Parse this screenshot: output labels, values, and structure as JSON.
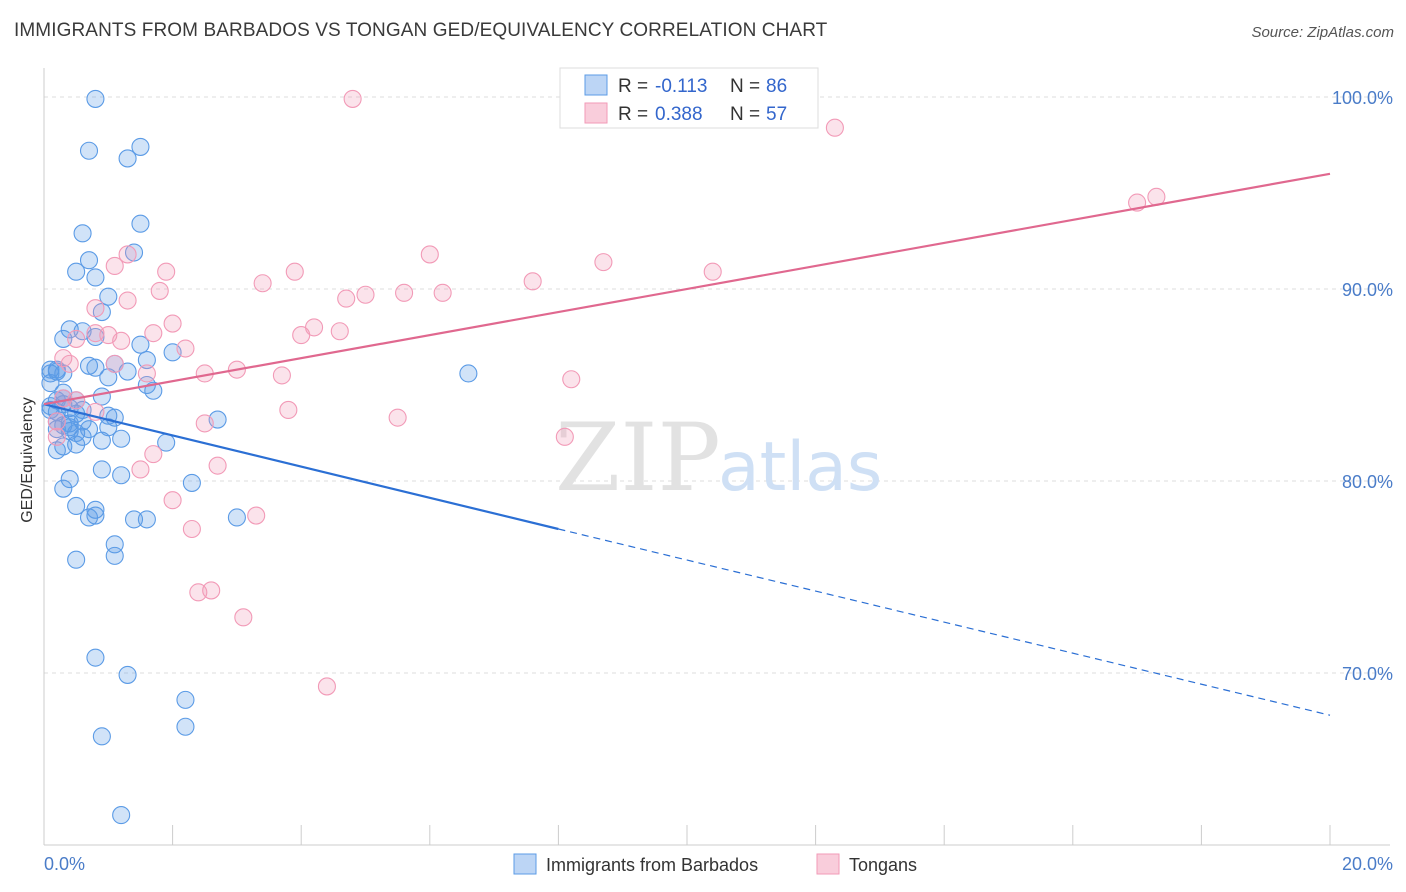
{
  "header": {
    "title": "IMMIGRANTS FROM BARBADOS VS TONGAN GED/EQUIVALENCY CORRELATION CHART",
    "source": "Source: ZipAtlas.com"
  },
  "watermark": {
    "zip": "ZIP",
    "atlas": "atlas"
  },
  "colors": {
    "blue": "#5b9be6",
    "blue_line": "#2b6fd4",
    "pink": "#f29ab7",
    "pink_line": "#e0688f",
    "tick": "#4a7cc8",
    "grid": "#dddddd"
  },
  "legend": {
    "r_label": "R =",
    "n_label": "N =",
    "rows": [
      {
        "r": "-0.113",
        "n": "86",
        "color": "#5b9be6"
      },
      {
        "r": "0.388",
        "n": "57",
        "color": "#f29ab7"
      }
    ]
  },
  "bottom_legend": [
    {
      "label": "Immigrants from Barbados",
      "color": "#5b9be6"
    },
    {
      "label": "Tongans",
      "color": "#f29ab7"
    }
  ],
  "chart_data": {
    "type": "scatter",
    "xlabel": "",
    "ylabel": "GED/Equivalency",
    "xlim": [
      0,
      20
    ],
    "ylim": [
      60,
      100
    ],
    "x_tick_labels": [
      {
        "x": 0,
        "label": "0.0%"
      },
      {
        "x": 20,
        "label": "20.0%"
      }
    ],
    "y_tick_labels": [
      {
        "y": 100,
        "label": "100.0%"
      },
      {
        "y": 90,
        "label": "90.0%"
      },
      {
        "y": 80,
        "label": "80.0%"
      },
      {
        "y": 70,
        "label": "70.0%"
      }
    ],
    "x_minor_ticks": [
      0,
      2,
      4,
      6,
      8,
      10,
      12,
      14,
      16,
      18,
      20
    ],
    "grid": true,
    "legend_position": "top-center",
    "series": [
      {
        "name": "Immigrants from Barbados",
        "color": "#5b9be6",
        "trend": {
          "x": [
            0,
            8
          ],
          "y": [
            84,
            77.5
          ],
          "dashed_to": [
            20,
            67.8
          ]
        },
        "points": [
          [
            0.8,
            99.9
          ],
          [
            0.7,
            97.2
          ],
          [
            1.3,
            96.8
          ],
          [
            1.5,
            97.4
          ],
          [
            1.5,
            93.4
          ],
          [
            0.6,
            92.9
          ],
          [
            1.4,
            91.9
          ],
          [
            0.7,
            91.5
          ],
          [
            0.5,
            90.9
          ],
          [
            0.8,
            90.6
          ],
          [
            1.0,
            89.6
          ],
          [
            0.9,
            88.8
          ],
          [
            0.4,
            87.9
          ],
          [
            0.6,
            87.8
          ],
          [
            0.8,
            87.5
          ],
          [
            0.3,
            87.4
          ],
          [
            1.5,
            87.1
          ],
          [
            1.6,
            86.3
          ],
          [
            1.1,
            86.1
          ],
          [
            0.7,
            86.0
          ],
          [
            0.8,
            85.9
          ],
          [
            0.1,
            85.8
          ],
          [
            0.2,
            85.8
          ],
          [
            1.3,
            85.7
          ],
          [
            1.0,
            85.4
          ],
          [
            0.1,
            85.6
          ],
          [
            0.2,
            85.7
          ],
          [
            0.3,
            85.6
          ],
          [
            0.1,
            85.1
          ],
          [
            1.6,
            85.0
          ],
          [
            1.7,
            84.7
          ],
          [
            0.3,
            84.6
          ],
          [
            0.9,
            84.4
          ],
          [
            0.3,
            84.0
          ],
          [
            0.4,
            83.8
          ],
          [
            0.1,
            83.9
          ],
          [
            0.2,
            83.6
          ],
          [
            0.5,
            83.5
          ],
          [
            1.1,
            83.3
          ],
          [
            2.7,
            83.2
          ],
          [
            0.6,
            83.1
          ],
          [
            0.4,
            83.0
          ],
          [
            0.3,
            82.9
          ],
          [
            1.0,
            82.8
          ],
          [
            0.2,
            82.7
          ],
          [
            0.4,
            82.6
          ],
          [
            0.5,
            82.5
          ],
          [
            0.6,
            82.3
          ],
          [
            1.2,
            82.2
          ],
          [
            0.9,
            82.1
          ],
          [
            1.9,
            82.0
          ],
          [
            0.5,
            81.9
          ],
          [
            0.3,
            81.8
          ],
          [
            0.2,
            81.6
          ],
          [
            0.9,
            80.6
          ],
          [
            1.2,
            80.3
          ],
          [
            0.4,
            80.1
          ],
          [
            2.3,
            79.9
          ],
          [
            0.3,
            79.6
          ],
          [
            0.5,
            78.7
          ],
          [
            0.8,
            78.5
          ],
          [
            0.8,
            78.2
          ],
          [
            0.7,
            78.1
          ],
          [
            1.4,
            78.0
          ],
          [
            1.6,
            78.0
          ],
          [
            3.0,
            78.1
          ],
          [
            1.1,
            76.7
          ],
          [
            1.1,
            76.1
          ],
          [
            0.5,
            75.9
          ],
          [
            2.0,
            86.7
          ],
          [
            6.6,
            85.6
          ],
          [
            0.8,
            70.8
          ],
          [
            1.3,
            69.9
          ],
          [
            2.2,
            68.6
          ],
          [
            2.2,
            67.2
          ],
          [
            0.9,
            66.7
          ],
          [
            1.2,
            62.6
          ],
          [
            0.2,
            84.2
          ],
          [
            0.5,
            84.2
          ],
          [
            0.6,
            83.7
          ],
          [
            0.4,
            82.8
          ],
          [
            0.3,
            84.3
          ],
          [
            0.7,
            82.7
          ],
          [
            1.0,
            83.4
          ],
          [
            0.2,
            83.1
          ],
          [
            0.1,
            83.7
          ]
        ]
      },
      {
        "name": "Tongans",
        "color": "#f29ab7",
        "trend": {
          "x": [
            0,
            20
          ],
          "y": [
            84,
            96
          ]
        },
        "points": [
          [
            4.8,
            99.9
          ],
          [
            12.3,
            98.4
          ],
          [
            17.0,
            94.5
          ],
          [
            17.3,
            94.8
          ],
          [
            6.0,
            91.8
          ],
          [
            8.7,
            91.4
          ],
          [
            10.4,
            90.9
          ],
          [
            1.3,
            91.8
          ],
          [
            1.1,
            91.2
          ],
          [
            1.9,
            90.9
          ],
          [
            3.9,
            90.9
          ],
          [
            3.4,
            90.3
          ],
          [
            7.6,
            90.4
          ],
          [
            1.8,
            89.9
          ],
          [
            5.0,
            89.7
          ],
          [
            5.6,
            89.8
          ],
          [
            6.2,
            89.8
          ],
          [
            4.7,
            89.5
          ],
          [
            1.3,
            89.4
          ],
          [
            0.8,
            89.0
          ],
          [
            2.0,
            88.2
          ],
          [
            4.2,
            88.0
          ],
          [
            4.6,
            87.8
          ],
          [
            1.7,
            87.7
          ],
          [
            4.0,
            87.6
          ],
          [
            1.0,
            87.6
          ],
          [
            0.8,
            87.7
          ],
          [
            0.5,
            87.4
          ],
          [
            1.2,
            87.3
          ],
          [
            2.2,
            86.9
          ],
          [
            0.3,
            86.4
          ],
          [
            1.1,
            86.1
          ],
          [
            0.4,
            86.1
          ],
          [
            3.0,
            85.8
          ],
          [
            2.5,
            85.6
          ],
          [
            3.7,
            85.5
          ],
          [
            8.2,
            85.3
          ],
          [
            1.6,
            85.6
          ],
          [
            0.3,
            84.3
          ],
          [
            0.8,
            83.6
          ],
          [
            3.8,
            83.7
          ],
          [
            5.5,
            83.3
          ],
          [
            2.5,
            83.0
          ],
          [
            8.1,
            82.3
          ],
          [
            0.2,
            82.3
          ],
          [
            1.7,
            81.4
          ],
          [
            2.7,
            80.8
          ],
          [
            1.5,
            80.6
          ],
          [
            2.0,
            79.0
          ],
          [
            3.3,
            78.2
          ],
          [
            2.3,
            77.5
          ],
          [
            2.4,
            74.2
          ],
          [
            2.6,
            74.3
          ],
          [
            3.1,
            72.9
          ],
          [
            4.4,
            69.3
          ],
          [
            0.5,
            84.2
          ],
          [
            0.2,
            83.1
          ]
        ]
      }
    ]
  }
}
